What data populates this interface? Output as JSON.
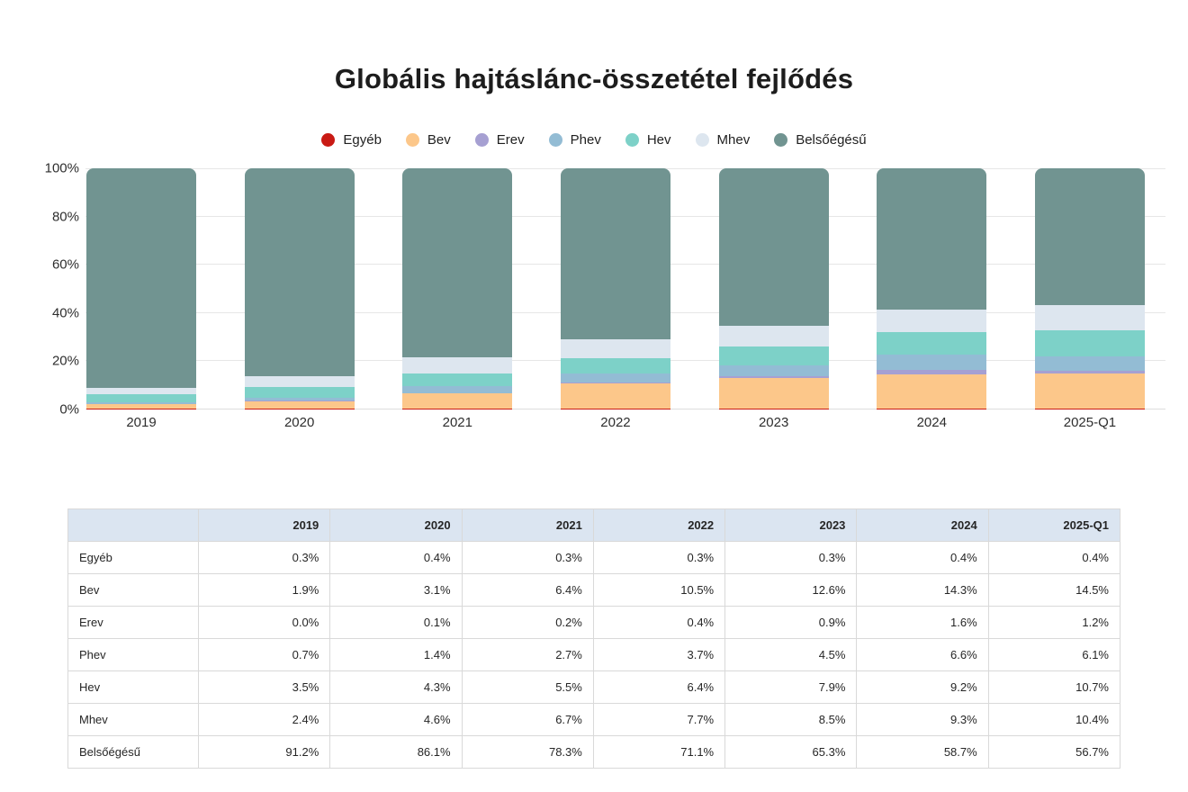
{
  "title": "Globális hajtáslánc-összetétel fejlődés",
  "chart_data": {
    "type": "bar",
    "stacked": true,
    "title": "Globális hajtáslánc-összetétel fejlődés",
    "categories": [
      "2019",
      "2020",
      "2021",
      "2022",
      "2023",
      "2024",
      "2025-Q1"
    ],
    "series": [
      {
        "name": "Egyéb",
        "color": "#c91a14",
        "values": [
          0.3,
          0.4,
          0.3,
          0.3,
          0.3,
          0.4,
          0.4
        ]
      },
      {
        "name": "Bev",
        "color": "#fcc78a",
        "values": [
          1.9,
          3.1,
          6.4,
          10.5,
          12.6,
          14.3,
          14.5
        ]
      },
      {
        "name": "Erev",
        "color": "#a6a0d2",
        "values": [
          0.0,
          0.1,
          0.2,
          0.4,
          0.9,
          1.6,
          1.2
        ]
      },
      {
        "name": "Phev",
        "color": "#93bcd4",
        "values": [
          0.7,
          1.4,
          2.7,
          3.7,
          4.5,
          6.6,
          6.1
        ]
      },
      {
        "name": "Hev",
        "color": "#7dd1c8",
        "values": [
          3.5,
          4.3,
          5.5,
          6.4,
          7.9,
          9.2,
          10.7
        ]
      },
      {
        "name": "Mhev",
        "color": "#dde6ef",
        "values": [
          2.4,
          4.6,
          6.7,
          7.7,
          8.5,
          9.3,
          10.4
        ]
      },
      {
        "name": "Belsőégésű",
        "color": "#719491",
        "values": [
          91.2,
          86.1,
          78.3,
          71.1,
          65.3,
          58.7,
          56.7
        ]
      }
    ],
    "y_ticks": [
      "0%",
      "20%",
      "40%",
      "60%",
      "80%",
      "100%"
    ],
    "ylim": [
      0,
      100
    ],
    "grid": true,
    "legend_position": "top"
  },
  "table": {
    "header": [
      "",
      "2019",
      "2020",
      "2021",
      "2022",
      "2023",
      "2024",
      "2025-Q1"
    ],
    "rows": [
      {
        "label": "Egyéb",
        "values": [
          "0.3%",
          "0.4%",
          "0.3%",
          "0.3%",
          "0.3%",
          "0.4%",
          "0.4%"
        ]
      },
      {
        "label": "Bev",
        "values": [
          "1.9%",
          "3.1%",
          "6.4%",
          "10.5%",
          "12.6%",
          "14.3%",
          "14.5%"
        ]
      },
      {
        "label": "Erev",
        "values": [
          "0.0%",
          "0.1%",
          "0.2%",
          "0.4%",
          "0.9%",
          "1.6%",
          "1.2%"
        ]
      },
      {
        "label": "Phev",
        "values": [
          "0.7%",
          "1.4%",
          "2.7%",
          "3.7%",
          "4.5%",
          "6.6%",
          "6.1%"
        ]
      },
      {
        "label": "Hev",
        "values": [
          "3.5%",
          "4.3%",
          "5.5%",
          "6.4%",
          "7.9%",
          "9.2%",
          "10.7%"
        ]
      },
      {
        "label": "Mhev",
        "values": [
          "2.4%",
          "4.6%",
          "6.7%",
          "7.7%",
          "8.5%",
          "9.3%",
          "10.4%"
        ]
      },
      {
        "label": "Belsőégésű",
        "values": [
          "91.2%",
          "86.1%",
          "78.3%",
          "71.1%",
          "65.3%",
          "58.7%",
          "56.7%"
        ]
      }
    ]
  }
}
